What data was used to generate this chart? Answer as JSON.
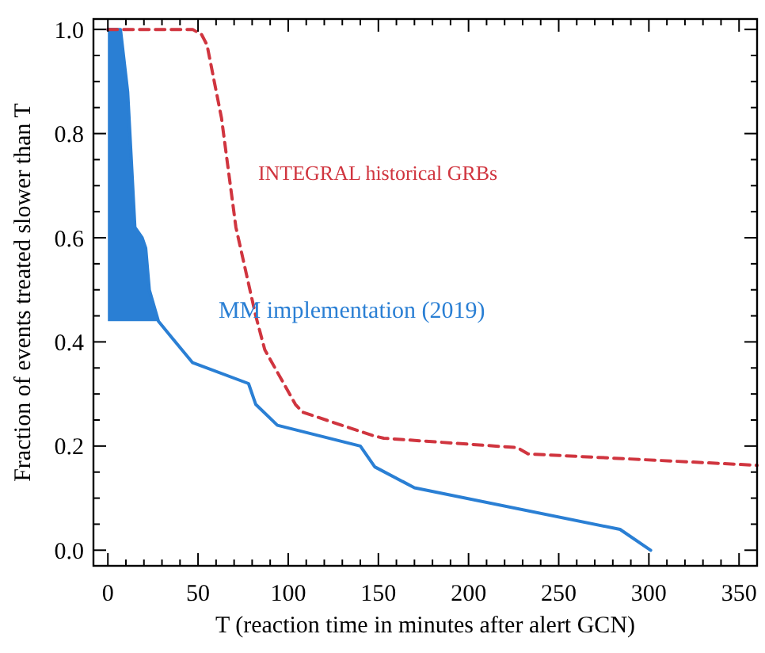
{
  "chart_data": {
    "type": "line",
    "xlabel": "T (reaction time in minutes after alert GCN)",
    "ylabel": "Fraction of events treated slower than T",
    "xlim": [
      -8,
      360
    ],
    "ylim": [
      -0.03,
      1.02
    ],
    "xticks": [
      0,
      {
        "value": 10,
        "label": null
      },
      {
        "value": 20,
        "label": null
      },
      {
        "value": 30,
        "label": null
      },
      {
        "value": 40,
        "label": null
      },
      50,
      {
        "value": 60,
        "label": null
      },
      {
        "value": 70,
        "label": null
      },
      {
        "value": 80,
        "label": null
      },
      {
        "value": 90,
        "label": null
      },
      100,
      {
        "value": 110,
        "label": null
      },
      {
        "value": 120,
        "label": null
      },
      {
        "value": 130,
        "label": null
      },
      {
        "value": 140,
        "label": null
      },
      150,
      {
        "value": 160,
        "label": null
      },
      {
        "value": 170,
        "label": null
      },
      {
        "value": 180,
        "label": null
      },
      {
        "value": 190,
        "label": null
      },
      200,
      {
        "value": 210,
        "label": null
      },
      {
        "value": 220,
        "label": null
      },
      {
        "value": 230,
        "label": null
      },
      {
        "value": 240,
        "label": null
      },
      250,
      {
        "value": 260,
        "label": null
      },
      {
        "value": 270,
        "label": null
      },
      {
        "value": 280,
        "label": null
      },
      {
        "value": 290,
        "label": null
      },
      300,
      {
        "value": 310,
        "label": null
      },
      {
        "value": 320,
        "label": null
      },
      {
        "value": 330,
        "label": null
      },
      {
        "value": 340,
        "label": null
      },
      350
    ],
    "yticks": [
      {
        "value": 0,
        "label": "0.0"
      },
      {
        "value": 0.05,
        "label": null
      },
      {
        "value": 0.1,
        "label": null
      },
      {
        "value": 0.15,
        "label": null
      },
      0.2,
      {
        "value": 0.25,
        "label": null
      },
      {
        "value": 0.3,
        "label": null
      },
      {
        "value": 0.35,
        "label": null
      },
      0.4,
      {
        "value": 0.45,
        "label": null
      },
      {
        "value": 0.5,
        "label": null
      },
      {
        "value": 0.55,
        "label": null
      },
      0.6,
      {
        "value": 0.65,
        "label": null
      },
      {
        "value": 0.7,
        "label": null
      },
      {
        "value": 0.75,
        "label": null
      },
      0.8,
      {
        "value": 0.85,
        "label": null
      },
      {
        "value": 0.9,
        "label": null
      },
      {
        "value": 0.95,
        "label": null
      },
      {
        "value": 1,
        "label": "1.0"
      }
    ],
    "grid": false,
    "legend": false,
    "series": [
      {
        "name": "MM implementation (2019)",
        "color": "#2a7fd4",
        "line_style": "solid",
        "x": [
          0,
          7,
          11,
          15,
          19,
          21,
          23,
          28,
          35,
          47,
          78,
          82,
          94,
          140,
          148,
          170,
          284,
          301
        ],
        "values": [
          1,
          1,
          0.88,
          0.62,
          0.6,
          0.58,
          0.5,
          0.44,
          0.41,
          0.36,
          0.32,
          0.28,
          0.24,
          0.2,
          0.16,
          0.12,
          0.04,
          0
        ],
        "lower": [
          0.44,
          0.44,
          0.44,
          0.44,
          0.44,
          0.44,
          0.44,
          0.44,
          null,
          null,
          null,
          null,
          null,
          null,
          null,
          null,
          null,
          null
        ],
        "upper": [
          1,
          1,
          0.88,
          0.62,
          0.6,
          0.58,
          0.5,
          0.44,
          null,
          null,
          null,
          null,
          null,
          null,
          null,
          null,
          null,
          null
        ]
      },
      {
        "name": "INTEGRAL historical GRBs",
        "color": "#d0353f",
        "line_style": "dashed",
        "x": [
          0,
          47,
          52,
          55,
          63,
          71,
          82,
          87,
          104,
          108,
          147,
          153,
          227,
          233,
          360
        ],
        "values": [
          1,
          1,
          0.99,
          0.97,
          0.83,
          0.62,
          0.45,
          0.385,
          0.28,
          0.265,
          0.22,
          0.215,
          0.197,
          0.185,
          0.163
        ]
      }
    ]
  }
}
